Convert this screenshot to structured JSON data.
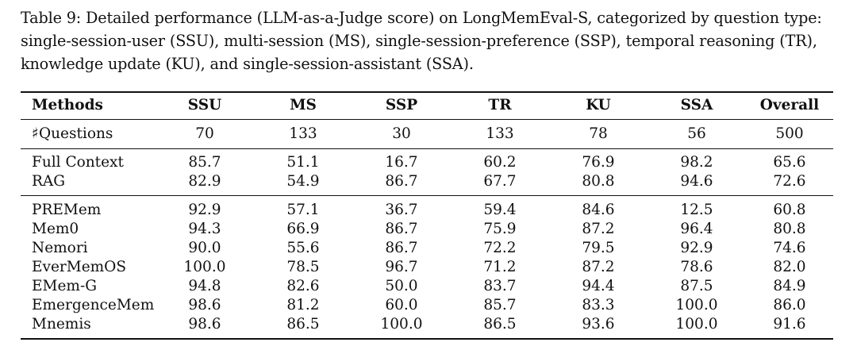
{
  "caption": {
    "lines": [
      "Table 9: Detailed performance (LLM-as-a-Judge score) on LongMemEval-S, categorized by question type:",
      "single-session-user (SSU), multi-session (MS), single-session-preference (SSP), temporal reasoning (TR),",
      "knowledge update (KU), and single-session-assistant (SSA)."
    ]
  },
  "table": {
    "headers": [
      "Methods",
      "SSU",
      "MS",
      "SSP",
      "TR",
      "KU",
      "SSA",
      "Overall"
    ],
    "questions": {
      "label": "♯Questions",
      "values": [
        "70",
        "133",
        "30",
        "133",
        "78",
        "56",
        "500"
      ]
    },
    "baselines": [
      {
        "method": "Full Context",
        "values": [
          "85.7",
          "51.1",
          "16.7",
          "60.2",
          "76.9",
          "98.2",
          "65.6"
        ],
        "bold": [
          false,
          false,
          false,
          false,
          false,
          false,
          false,
          false
        ]
      },
      {
        "method": "RAG",
        "values": [
          "82.9",
          "54.9",
          "86.7",
          "67.7",
          "80.8",
          "94.6",
          "72.6"
        ],
        "bold": [
          false,
          false,
          false,
          false,
          false,
          false,
          false,
          false
        ]
      }
    ],
    "memory_systems": [
      {
        "method": "PREMem",
        "values": [
          "92.9",
          "57.1",
          "36.7",
          "59.4",
          "84.6",
          "12.5",
          "60.8"
        ],
        "bold": [
          false,
          false,
          false,
          false,
          false,
          false,
          false,
          false
        ]
      },
      {
        "method": "Mem0",
        "values": [
          "94.3",
          "66.9",
          "86.7",
          "75.9",
          "87.2",
          "96.4",
          "80.8"
        ],
        "bold": [
          false,
          false,
          false,
          false,
          false,
          false,
          false,
          false
        ]
      },
      {
        "method": "Nemori",
        "values": [
          "90.0",
          "55.6",
          "86.7",
          "72.2",
          "79.5",
          "92.9",
          "74.6"
        ],
        "bold": [
          false,
          false,
          false,
          false,
          false,
          false,
          false,
          false
        ]
      },
      {
        "method": "EverMemOS",
        "values": [
          "100.0",
          "78.5",
          "96.7",
          "71.2",
          "87.2",
          "78.6",
          "82.0"
        ],
        "bold": [
          false,
          true,
          false,
          false,
          false,
          false,
          false,
          false
        ]
      },
      {
        "method": "EMem-G",
        "values": [
          "94.8",
          "82.6",
          "50.0",
          "83.7",
          "94.4",
          "87.5",
          "84.9"
        ],
        "bold": [
          false,
          false,
          false,
          false,
          false,
          true,
          false,
          false
        ]
      },
      {
        "method": "EmergenceMem",
        "values": [
          "98.6",
          "81.2",
          "60.0",
          "85.7",
          "83.3",
          "100.0",
          "86.0"
        ],
        "bold": [
          false,
          false,
          false,
          false,
          false,
          false,
          true,
          false
        ]
      },
      {
        "method": "Mnemis",
        "values": [
          "98.6",
          "86.5",
          "100.0",
          "86.5",
          "93.6",
          "100.0",
          "91.6"
        ],
        "bold": [
          true,
          false,
          true,
          true,
          true,
          false,
          true,
          true
        ]
      }
    ]
  }
}
